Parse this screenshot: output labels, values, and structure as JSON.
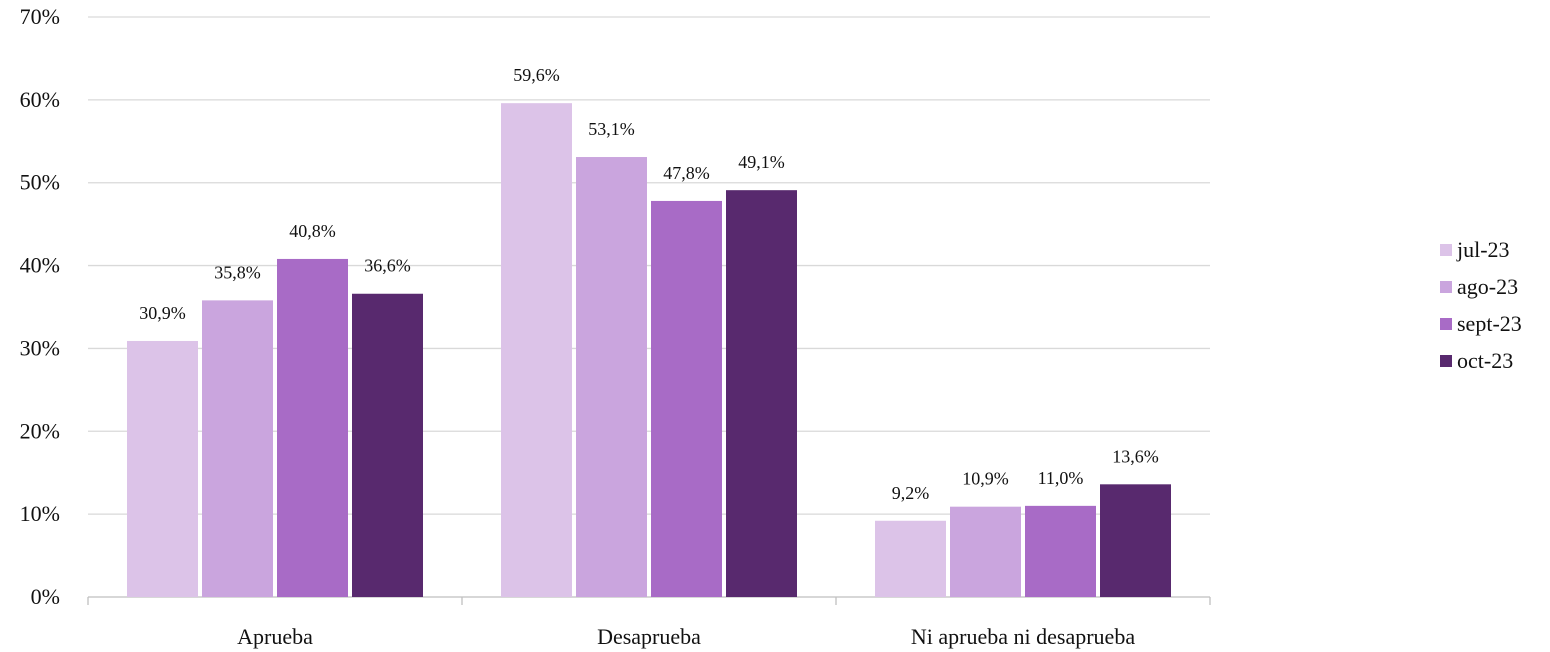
{
  "chart_data": {
    "type": "bar",
    "title": "",
    "xlabel": "",
    "ylabel": "",
    "ylim": [
      0,
      70
    ],
    "y_unit": "%",
    "y_ticks": [
      "0%",
      "10%",
      "20%",
      "30%",
      "40%",
      "50%",
      "60%",
      "70%"
    ],
    "grid": true,
    "legend_position": "right",
    "categories": [
      "Aprueba",
      "Desaprueba",
      "Ni aprueba ni desaprueba"
    ],
    "series": [
      {
        "name": "jul-23",
        "color": "#dcc3e8",
        "values": [
          30.9,
          59.6,
          9.2
        ],
        "labels": [
          "30,9%",
          "59,6%",
          "9,2%"
        ]
      },
      {
        "name": "ago-23",
        "color": "#caa5de",
        "values": [
          35.8,
          53.1,
          10.9
        ],
        "labels": [
          "35,8%",
          "53,1%",
          "10,9%"
        ]
      },
      {
        "name": "sept-23",
        "color": "#a86bc6",
        "values": [
          40.8,
          47.8,
          11.0
        ],
        "labels": [
          "40,8%",
          "47,8%",
          "11,0%"
        ]
      },
      {
        "name": "oct-23",
        "color": "#58296e",
        "values": [
          36.6,
          49.1,
          13.6
        ],
        "labels": [
          "36,6%",
          "49,1%",
          "13,6%"
        ]
      }
    ]
  }
}
